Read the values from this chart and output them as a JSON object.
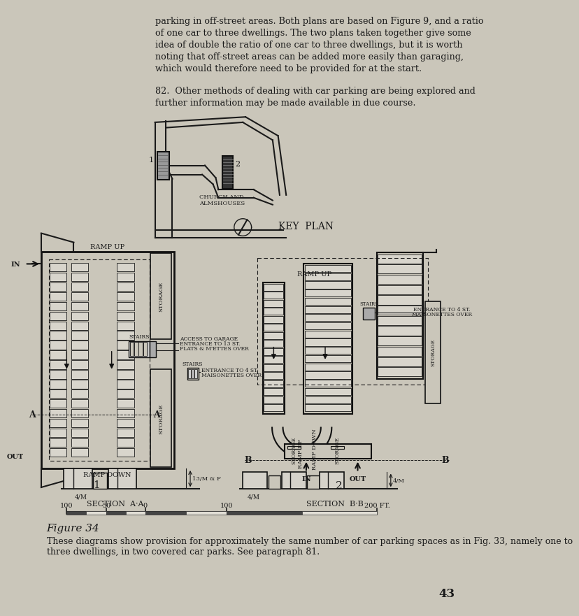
{
  "bg_color": "#cac6ba",
  "line_color": "#1a1a1a",
  "dark_color": "#111111",
  "text_color": "#1a1a1a",
  "title_text": "Figure 34",
  "caption_text": "These diagrams show provision for approximately the same number of car parking spaces as in Fig. 33, namely one to\nthree dwellings, in two covered car parks. See paragraph 81.",
  "page_number": "43",
  "para_text": "parking in off-street areas. Both plans are based on Figure 9, and a ratio\nof one car to three dwellings. The two plans taken together give some\nidea of double the ratio of one car to three dwellings, but it is worth\nnoting that off-street areas can be added more easily than garaging,\nwhich would therefore need to be provided for at the start.",
  "para2_text": "82.  Other methods of dealing with car parking are being explored and\nfurther information may be made available in due course."
}
